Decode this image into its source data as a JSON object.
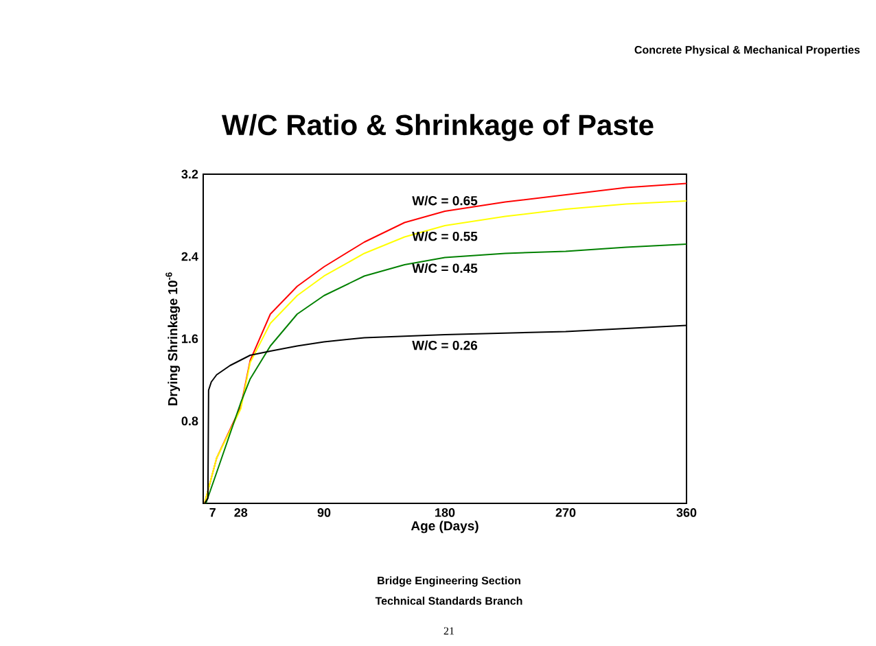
{
  "chart_data": {
    "type": "line",
    "title": "W/C Ratio & Shrinkage of Paste",
    "xlabel": "Age (Days)",
    "ylabel": "Drying Shrinkage 10$^{-6}$",
    "xlim": [
      0,
      360
    ],
    "ylim": [
      0,
      3.2
    ],
    "xticks": [
      7,
      28,
      90,
      180,
      270,
      360
    ],
    "yticks": [
      0.8,
      1.6,
      2.4,
      3.2
    ],
    "grid": false,
    "legend": false,
    "marker": "none",
    "line_style": "solid",
    "series": [
      {
        "name": "W/C = 0.65",
        "color": "#ff0000",
        "x": [
          1,
          10,
          28,
          35,
          50,
          70,
          90,
          120,
          150,
          180,
          225,
          270,
          315,
          360
        ],
        "values": [
          0,
          0.44,
          0.94,
          1.39,
          1.84,
          2.11,
          2.3,
          2.54,
          2.73,
          2.84,
          2.93,
          3.0,
          3.07,
          3.11
        ]
      },
      {
        "name": "W/C = 0.55",
        "color": "#ffff00",
        "x": [
          1,
          10,
          28,
          35,
          50,
          70,
          90,
          120,
          150,
          180,
          225,
          270,
          315,
          360
        ],
        "values": [
          0,
          0.44,
          0.92,
          1.37,
          1.75,
          2.02,
          2.21,
          2.43,
          2.59,
          2.7,
          2.79,
          2.86,
          2.91,
          2.94
        ]
      },
      {
        "name": "W/C = 0.45",
        "color": "#008000",
        "x": [
          2,
          10,
          28,
          35,
          50,
          70,
          90,
          120,
          150,
          180,
          225,
          270,
          315,
          360
        ],
        "values": [
          0,
          0.3,
          0.98,
          1.21,
          1.53,
          1.84,
          2.02,
          2.21,
          2.32,
          2.39,
          2.43,
          2.45,
          2.49,
          2.52
        ]
      },
      {
        "name": "W/C = 0.26",
        "color": "#000000",
        "x": [
          1,
          3.5,
          4,
          6,
          10,
          20,
          35,
          50,
          70,
          90,
          120,
          180,
          270,
          360
        ],
        "values": [
          0,
          0.05,
          1.1,
          1.18,
          1.25,
          1.34,
          1.44,
          1.48,
          1.53,
          1.57,
          1.61,
          1.64,
          1.67,
          1.73
        ]
      }
    ],
    "annotations": [
      "Concrete Physical & Mechanical Properties",
      "Bridge Engineering Section",
      "Technical Standards Branch",
      "21"
    ]
  }
}
